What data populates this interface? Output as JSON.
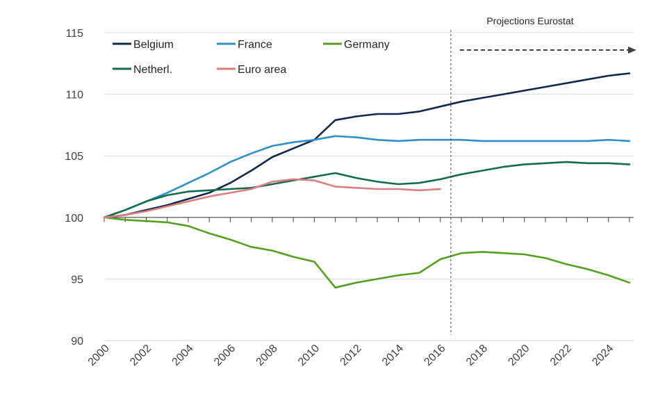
{
  "chart_data": {
    "type": "line",
    "title": "",
    "xlabel": "",
    "ylabel": "",
    "xlim": [
      2000,
      2025
    ],
    "ylim": [
      90,
      115
    ],
    "y_ticks": [
      "90",
      "95",
      "100",
      "105",
      "110",
      "115"
    ],
    "x_ticks": [
      "2000",
      "2002",
      "2004",
      "2006",
      "2008",
      "2010",
      "2012",
      "2014",
      "2016",
      "2018",
      "2020",
      "2022",
      "2024"
    ],
    "grid": "horizontal",
    "baseline": 100,
    "legend_position": "top-left",
    "projection_start": 2016.5,
    "annotation": "Projections Eurostat",
    "series": [
      {
        "name": "Belgium",
        "color": "#10284f",
        "x": [
          2000,
          2001,
          2002,
          2003,
          2004,
          2005,
          2006,
          2007,
          2008,
          2009,
          2010,
          2011,
          2012,
          2013,
          2014,
          2015,
          2016,
          2017,
          2018,
          2019,
          2020,
          2021,
          2022,
          2023,
          2024,
          2025
        ],
        "values": [
          100,
          100.2,
          100.6,
          101.0,
          101.5,
          102.0,
          102.8,
          103.8,
          104.9,
          105.6,
          106.3,
          107.9,
          108.2,
          108.4,
          108.4,
          108.6,
          109.0,
          109.4,
          109.7,
          110.0,
          110.3,
          110.6,
          110.9,
          111.2,
          111.5,
          111.7
        ]
      },
      {
        "name": "France",
        "color": "#2e8fc9",
        "x": [
          2000,
          2001,
          2002,
          2003,
          2004,
          2005,
          2006,
          2007,
          2008,
          2009,
          2010,
          2011,
          2012,
          2013,
          2014,
          2015,
          2016,
          2017,
          2018,
          2019,
          2020,
          2021,
          2022,
          2023,
          2024,
          2025
        ],
        "values": [
          100,
          100.6,
          101.3,
          102.0,
          102.8,
          103.6,
          104.5,
          105.2,
          105.8,
          106.1,
          106.3,
          106.6,
          106.5,
          106.3,
          106.2,
          106.3,
          106.3,
          106.3,
          106.2,
          106.2,
          106.2,
          106.2,
          106.2,
          106.2,
          106.3,
          106.2
        ]
      },
      {
        "name": "Germany",
        "color": "#54a01e",
        "x": [
          2000,
          2001,
          2002,
          2003,
          2004,
          2005,
          2006,
          2007,
          2008,
          2009,
          2010,
          2011,
          2012,
          2013,
          2014,
          2015,
          2016,
          2017,
          2018,
          2019,
          2020,
          2021,
          2022,
          2023,
          2024,
          2025
        ],
        "values": [
          100,
          99.8,
          99.7,
          99.6,
          99.3,
          98.7,
          98.2,
          97.6,
          97.3,
          96.8,
          96.4,
          94.3,
          94.7,
          95.0,
          95.3,
          95.5,
          96.6,
          97.1,
          97.2,
          97.1,
          97.0,
          96.7,
          96.2,
          95.8,
          95.3,
          94.7
        ]
      },
      {
        "name": "Netherl.",
        "color": "#136b4e",
        "x": [
          2000,
          2001,
          2002,
          2003,
          2004,
          2005,
          2006,
          2007,
          2008,
          2009,
          2010,
          2011,
          2012,
          2013,
          2014,
          2015,
          2016,
          2017,
          2018,
          2019,
          2020,
          2021,
          2022,
          2023,
          2024,
          2025
        ],
        "values": [
          100,
          100.6,
          101.3,
          101.8,
          102.1,
          102.2,
          102.3,
          102.4,
          102.7,
          103.0,
          103.3,
          103.6,
          103.2,
          102.9,
          102.7,
          102.8,
          103.1,
          103.5,
          103.8,
          104.1,
          104.3,
          104.4,
          104.5,
          104.4,
          104.4,
          104.3
        ]
      },
      {
        "name": "Euro area",
        "color": "#d97f7d",
        "x": [
          2000,
          2001,
          2002,
          2003,
          2004,
          2005,
          2006,
          2007,
          2008,
          2009,
          2010,
          2011,
          2012,
          2013,
          2014,
          2015,
          2016
        ],
        "values": [
          100,
          100.2,
          100.5,
          100.9,
          101.3,
          101.7,
          102.0,
          102.3,
          102.9,
          103.1,
          103.0,
          102.5,
          102.4,
          102.3,
          102.3,
          102.2,
          102.3
        ]
      }
    ]
  }
}
